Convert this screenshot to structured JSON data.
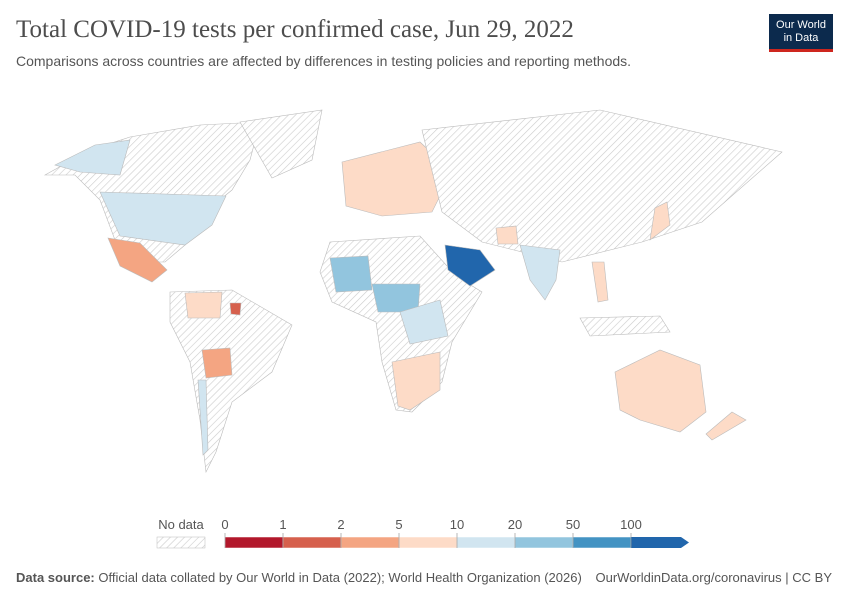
{
  "header": {
    "title": "Total COVID-19 tests per confirmed case, Jun 29, 2022",
    "subtitle": "Comparisons across countries are affected by differences in testing policies and reporting methods.",
    "logo": [
      "Our World",
      "in Data"
    ]
  },
  "legend": {
    "no_data": "No data",
    "ticks": [
      0,
      1,
      2,
      5,
      10,
      20,
      50,
      100
    ],
    "colors": [
      "#b2182b",
      "#d6604d",
      "#f4a582",
      "#fddbc7",
      "#d1e5f0",
      "#92c5de",
      "#4393c3",
      "#2166ac"
    ]
  },
  "footer": {
    "source_label": "Data source:",
    "source": "Official data collated by Our World in Data (2022); World Health Organization (2026)",
    "url": "OurWorldinData.org/coronavirus | CC BY"
  }
}
